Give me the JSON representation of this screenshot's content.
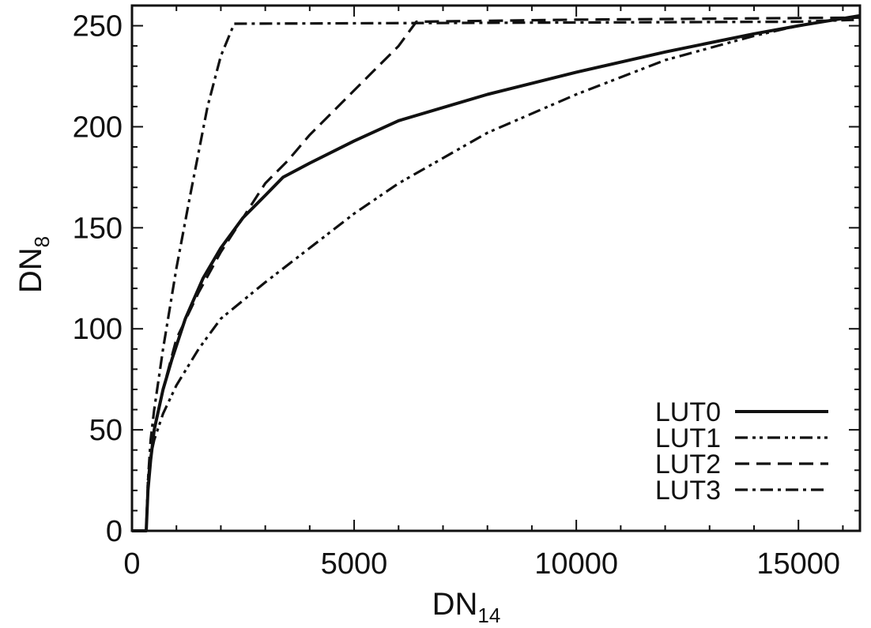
{
  "chart_data": {
    "type": "line",
    "xlabel": {
      "main": "DN",
      "sub": "14"
    },
    "ylabel": {
      "main": "DN",
      "sub": "8"
    },
    "xlim": [
      0,
      16384
    ],
    "ylim": [
      0,
      260
    ],
    "xticks": [
      0,
      5000,
      10000,
      15000
    ],
    "yticks": [
      0,
      50,
      100,
      150,
      200,
      250
    ],
    "grid": false,
    "legend_position": "bottom-right",
    "series": [
      {
        "name": "LUT0",
        "style": "solid",
        "x": [
          0,
          320,
          360,
          420,
          500,
          700,
          900,
          1200,
          1600,
          2000,
          2500,
          3000,
          3400,
          4000,
          5000,
          6000,
          8000,
          10000,
          12000,
          14000,
          15000,
          16384
        ],
        "y": [
          0,
          0,
          20,
          35,
          50,
          70,
          85,
          105,
          125,
          140,
          155,
          166,
          175,
          182,
          193,
          203,
          216,
          227,
          237,
          246,
          250,
          255
        ]
      },
      {
        "name": "LUT1",
        "style": "dash-dot-dot",
        "x": [
          0,
          320,
          360,
          420,
          500,
          700,
          1000,
          1500,
          2000,
          3000,
          4000,
          5000,
          6000,
          8000,
          10000,
          12000,
          14000,
          15000,
          16384
        ],
        "y": [
          0,
          0,
          25,
          37,
          45,
          58,
          72,
          90,
          105,
          123,
          140,
          157,
          172,
          197,
          216,
          233,
          245,
          250,
          255
        ]
      },
      {
        "name": "LUT2",
        "style": "dashed",
        "x": [
          0,
          320,
          360,
          420,
          500,
          700,
          1000,
          1500,
          2000,
          2500,
          3000,
          3500,
          4000,
          5000,
          6000,
          6400,
          10000,
          16384
        ],
        "y": [
          0,
          0,
          20,
          35,
          50,
          70,
          95,
          118,
          138,
          155,
          172,
          183,
          196,
          218,
          240,
          252,
          253,
          254
        ]
      },
      {
        "name": "LUT3",
        "style": "dash-dot",
        "x": [
          0,
          320,
          360,
          420,
          500,
          700,
          1000,
          1300,
          1700,
          2000,
          2300,
          15000,
          16384
        ],
        "y": [
          0,
          0,
          25,
          45,
          60,
          90,
          130,
          165,
          210,
          235,
          251,
          252,
          253
        ]
      }
    ]
  }
}
